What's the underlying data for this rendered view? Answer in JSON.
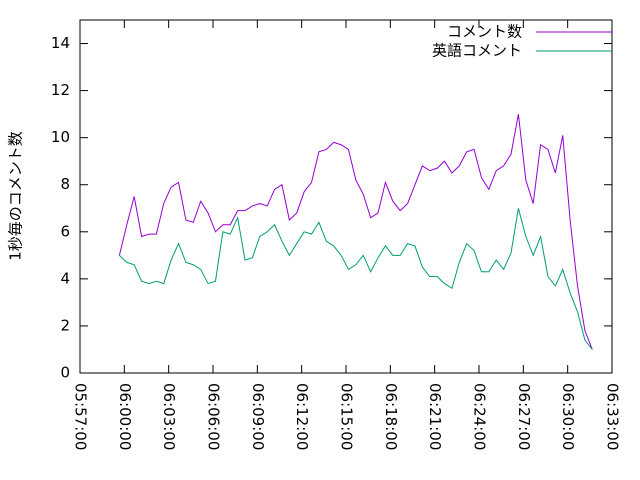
{
  "chart_data": {
    "type": "line",
    "y_label": "1秒毎のコメント数",
    "x": [
      "05:59:40",
      "06:00:10",
      "06:00:40",
      "06:01:10",
      "06:01:40",
      "06:02:10",
      "06:02:40",
      "06:03:10",
      "06:03:40",
      "06:04:10",
      "06:04:40",
      "06:05:10",
      "06:05:40",
      "06:06:10",
      "06:06:40",
      "06:07:10",
      "06:07:40",
      "06:08:10",
      "06:08:40",
      "06:09:10",
      "06:09:40",
      "06:10:10",
      "06:10:40",
      "06:11:10",
      "06:11:40",
      "06:12:10",
      "06:12:40",
      "06:13:10",
      "06:13:40",
      "06:14:10",
      "06:14:40",
      "06:15:10",
      "06:15:40",
      "06:16:10",
      "06:16:40",
      "06:17:10",
      "06:17:40",
      "06:18:10",
      "06:18:40",
      "06:19:10",
      "06:19:40",
      "06:20:10",
      "06:20:40",
      "06:21:10",
      "06:21:40",
      "06:22:10",
      "06:22:40",
      "06:23:10",
      "06:23:40",
      "06:24:10",
      "06:24:40",
      "06:25:10",
      "06:25:40",
      "06:26:10",
      "06:26:40",
      "06:27:10",
      "06:27:40",
      "06:28:10",
      "06:28:40",
      "06:29:10",
      "06:29:40",
      "06:30:10",
      "06:30:40",
      "06:31:10",
      "06:31:40"
    ],
    "series": [
      {
        "name": "コメント数",
        "color": "#9400d3",
        "values": [
          5.0,
          6.3,
          7.5,
          5.8,
          5.9,
          5.9,
          7.2,
          7.9,
          8.1,
          6.5,
          6.4,
          7.3,
          6.8,
          6.0,
          6.3,
          6.3,
          6.9,
          6.9,
          7.1,
          7.2,
          7.1,
          7.8,
          8.0,
          6.5,
          6.8,
          7.7,
          8.1,
          9.4,
          9.5,
          9.8,
          9.7,
          9.5,
          8.2,
          7.6,
          6.6,
          6.8,
          8.1,
          7.3,
          6.9,
          7.2,
          8.0,
          8.8,
          8.6,
          8.7,
          9.0,
          8.5,
          8.8,
          9.4,
          9.5,
          8.3,
          7.8,
          8.6,
          8.8,
          9.3,
          11.0,
          8.2,
          7.2,
          9.7,
          9.5,
          8.5,
          10.1,
          6.5,
          3.7,
          1.8,
          1.0
        ]
      },
      {
        "name": "英語コメント",
        "color": "#009e73",
        "values": [
          5.0,
          4.7,
          4.6,
          3.9,
          3.8,
          3.9,
          3.8,
          4.8,
          5.5,
          4.7,
          4.6,
          4.4,
          3.8,
          3.9,
          6.0,
          5.9,
          6.6,
          4.8,
          4.9,
          5.8,
          6.0,
          6.3,
          5.6,
          5.0,
          5.5,
          6.0,
          5.9,
          6.4,
          5.6,
          5.4,
          5.0,
          4.4,
          4.6,
          5.0,
          4.3,
          4.9,
          5.4,
          5.0,
          5.0,
          5.5,
          5.4,
          4.5,
          4.1,
          4.1,
          3.8,
          3.6,
          4.7,
          5.5,
          5.2,
          4.3,
          4.3,
          4.8,
          4.4,
          5.1,
          7.0,
          5.8,
          5.0,
          5.8,
          4.1,
          3.7,
          4.4,
          3.4,
          2.6,
          1.4,
          1.0
        ]
      }
    ],
    "xlim": [
      "05:57:00",
      "06:33:00"
    ],
    "xticks": [
      "05:57:00",
      "06:00:00",
      "06:03:00",
      "06:06:00",
      "06:09:00",
      "06:12:00",
      "06:15:00",
      "06:18:00",
      "06:21:00",
      "06:24:00",
      "06:27:00",
      "06:30:00",
      "06:33:00"
    ],
    "ylim": [
      0,
      15
    ],
    "yticks": [
      0,
      2,
      4,
      6,
      8,
      10,
      12,
      14
    ],
    "legend": "top-right"
  }
}
